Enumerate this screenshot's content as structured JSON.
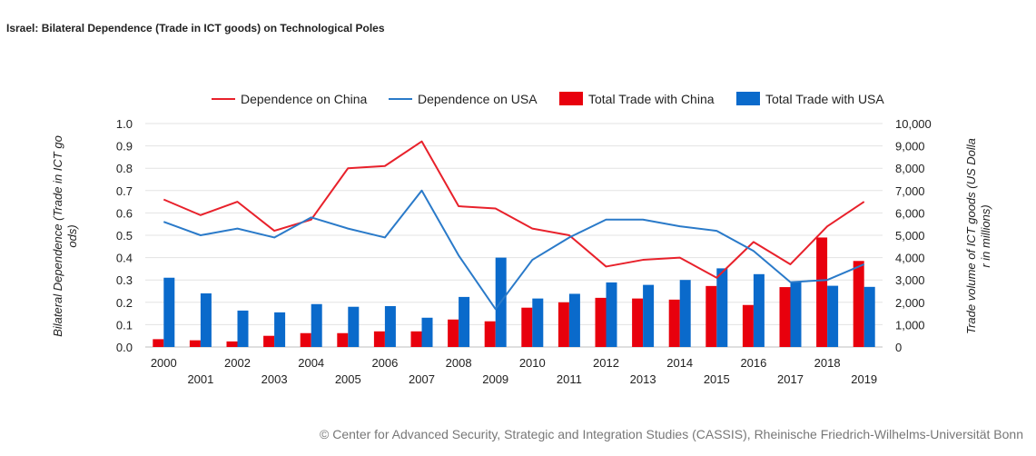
{
  "title": "Israel: Bilateral Dependence (Trade in ICT goods) on Technological Poles",
  "credit": "© Center for Advanced Security, Strategic and Integration Studies (CASSIS), Rheinische Friedrich-Wilhelms-Universität Bonn",
  "chart_data": {
    "type": "bar+line",
    "categories": [
      "2000",
      "2001",
      "2002",
      "2003",
      "2004",
      "2005",
      "2006",
      "2007",
      "2008",
      "2009",
      "2010",
      "2011",
      "2012",
      "2013",
      "2014",
      "2015",
      "2016",
      "2017",
      "2018",
      "2019"
    ],
    "left_axis": {
      "label": "Bilateral Dependence (Trade in ICT goods)",
      "ylim": [
        0,
        1.0
      ],
      "ticks": [
        "0.0",
        "0.1",
        "0.2",
        "0.3",
        "0.4",
        "0.5",
        "0.6",
        "0.7",
        "0.8",
        "0.9",
        "1.0"
      ]
    },
    "right_axis": {
      "label": "Trade volume of ICT goods (US Dollar in millions)",
      "ylim": [
        0,
        10000
      ],
      "ticks": [
        "0",
        "1,000",
        "2,000",
        "3,000",
        "4,000",
        "5,000",
        "6,000",
        "7,000",
        "8,000",
        "9,000",
        "10,000"
      ]
    },
    "legend_position": "top",
    "grid": "horizontal",
    "series": [
      {
        "name": "Dependence on China",
        "kind": "line",
        "axis": "left",
        "color": "#e8212b",
        "values": [
          0.66,
          0.59,
          0.65,
          0.52,
          0.57,
          0.8,
          0.81,
          0.92,
          0.63,
          0.62,
          0.53,
          0.5,
          0.36,
          0.39,
          0.4,
          0.31,
          0.47,
          0.37,
          0.54,
          0.65
        ]
      },
      {
        "name": "Dependence on USA",
        "kind": "line",
        "axis": "left",
        "color": "#2a7ac9",
        "values": [
          0.56,
          0.5,
          0.53,
          0.49,
          0.58,
          0.53,
          0.49,
          0.7,
          0.41,
          0.17,
          0.39,
          0.49,
          0.57,
          0.57,
          0.54,
          0.52,
          0.43,
          0.29,
          0.3,
          0.37
        ]
      },
      {
        "name": "Total Trade with China",
        "kind": "bar",
        "axis": "right",
        "color": "#e8000d",
        "values": [
          350,
          300,
          250,
          500,
          620,
          620,
          700,
          700,
          1230,
          1150,
          1760,
          2000,
          2200,
          2170,
          2120,
          2730,
          1880,
          2680,
          4900,
          3850
        ]
      },
      {
        "name": "Total Trade with USA",
        "kind": "bar",
        "axis": "right",
        "color": "#0a6acb",
        "values": [
          3100,
          2400,
          1630,
          1550,
          1920,
          1800,
          1830,
          1310,
          2240,
          4000,
          2170,
          2380,
          2890,
          2780,
          3000,
          3520,
          3260,
          2900,
          2740,
          2690
        ]
      }
    ]
  }
}
